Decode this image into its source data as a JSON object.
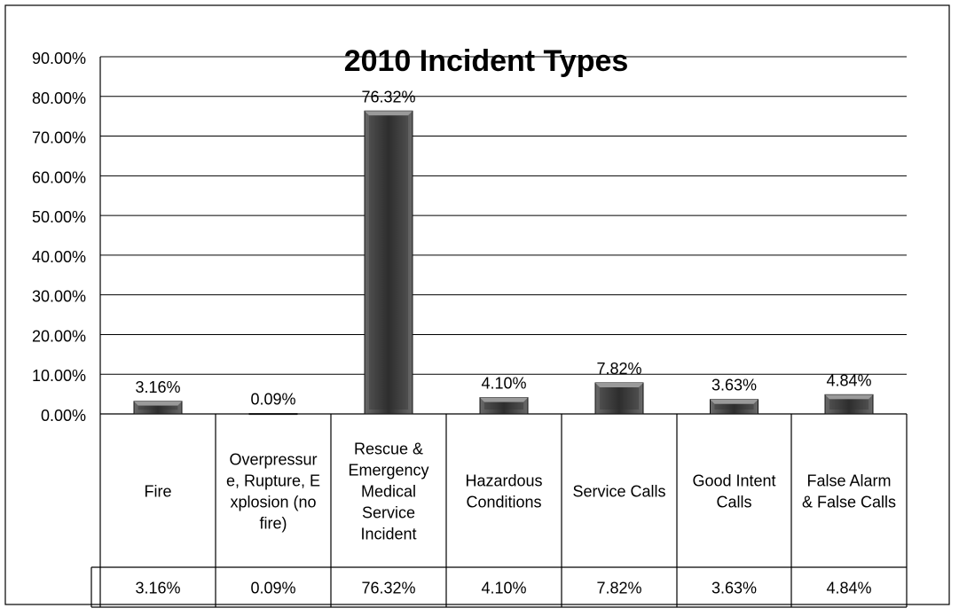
{
  "chart_data": {
    "type": "bar",
    "title": "2010 Incident Types",
    "categories": [
      [
        "Fire"
      ],
      [
        "Overpressur",
        "e, Rupture, E",
        "xplosion (no",
        "fire)"
      ],
      [
        "Rescue &",
        "Emergency",
        "Medical",
        "Service",
        "Incident"
      ],
      [
        "Hazardous",
        "Conditions"
      ],
      [
        "Service Calls"
      ],
      [
        "Good Intent",
        "Calls"
      ],
      [
        "False Alarm",
        "& False Calls"
      ]
    ],
    "values": [
      3.16,
      0.09,
      76.32,
      4.1,
      7.82,
      3.63,
      4.84
    ],
    "value_labels": [
      "3.16%",
      "0.09%",
      "76.32%",
      "4.10%",
      "7.82%",
      "3.63%",
      "4.84%"
    ],
    "table_values": [
      "3.16%",
      "0.09%",
      "76.32%",
      "4.10%",
      "7.82%",
      "3.63%",
      "4.84%"
    ],
    "ylim": [
      0,
      90
    ],
    "yticks": [
      "0.00%",
      "10.00%",
      "20.00%",
      "30.00%",
      "40.00%",
      "50.00%",
      "60.00%",
      "70.00%",
      "80.00%",
      "90.00%"
    ],
    "grid": true,
    "xlabel": "",
    "ylabel": "",
    "colors": {
      "bar_dark": "#2e2e2e",
      "bar_mid": "#6a6a6a",
      "bar_light": "#9a9a9a",
      "grid": "#000000",
      "text": "#000000"
    }
  }
}
